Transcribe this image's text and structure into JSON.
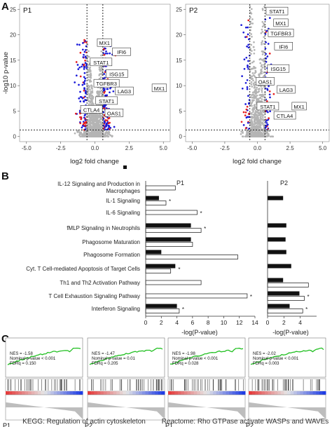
{
  "panel_labels": {
    "a": "A",
    "b": "B",
    "c": "C"
  },
  "volcano": {
    "xlabel": "log2 fold change",
    "ylabel": "-log10 p-value",
    "colors": {
      "grey": "#b4b4b4",
      "blue": "#1919d9",
      "red": "#e61e1e"
    }
  },
  "panel_b": {
    "xlabel": "-log(P-value)",
    "p1_title": "P1",
    "p2_title": "P2",
    "pathway_labels": [
      [
        "IL-12 Signaling and Production in",
        "Macrophages"
      ],
      [
        "IL-1 Signaling"
      ],
      [
        "IL-6 Signaling"
      ],
      [
        "fMLP Signaling in Neutrophils"
      ],
      [
        "Phagosome Maturation"
      ],
      [
        "Phagosome Formation"
      ],
      [
        "Cyt. T Cell-mediated Apoptosis of Target Cells"
      ],
      [
        "Th1 and Th2 Activation Pathway"
      ],
      [
        "T Cell Exhaustion Signaling Pathway"
      ],
      [
        "Interferon Signaling"
      ]
    ]
  },
  "panel_c": {
    "tiles": [
      {
        "patient": "P1",
        "nes": "NES = -1.58",
        "pval": "Nominal p-value < 0.001",
        "fdr": "FDRq = 0.150"
      },
      {
        "patient": "P2",
        "nes": "NES = -1.47",
        "pval": "Nominal p-value = 0.01",
        "fdr": "FDRq = 0.205"
      },
      {
        "patient": "P1",
        "nes": "NES = -1.98",
        "pval": "Nominal p-value < 0.001",
        "fdr": "FDRq = 0.028"
      },
      {
        "patient": "P2",
        "nes": "NES = -2.02",
        "pval": "Nominal p-value < 0.001",
        "fdr": "FDRq = 0.003"
      }
    ],
    "kegg_title": "KEGG: Regulation of actin cytoskeleton",
    "reactome_title": "Reactome: Rho GTPase activate WASPs and WAVEs"
  },
  "chart_data": [
    {
      "type": "scatter",
      "panel": "A",
      "title": "P1",
      "xlabel": "log2 fold change",
      "ylabel": "-log10 p-value",
      "xlim": [
        -5.5,
        5.5
      ],
      "ylim": [
        -1,
        26
      ],
      "x_ticks": [
        "-5.0",
        "-2.5",
        "0.0",
        "2.5",
        "5.0"
      ],
      "y_ticks": [
        "0",
        "5",
        "10",
        "15",
        "20",
        "25"
      ],
      "thresholds": {
        "log2fc": [
          -0.58,
          0.58
        ],
        "neg_log10_p": 1.3
      },
      "point_groups": [
        "not significant (grey)",
        "p < 0.05 (blue)",
        "FDR < 0.05 (red)"
      ],
      "labeled_genes": [
        {
          "gene": "MX1",
          "x": 0.7,
          "y": 18.4
        },
        {
          "gene": "IFI6",
          "x": 1.95,
          "y": 16.6
        },
        {
          "gene": "STAT1",
          "x": 0.45,
          "y": 14.6
        },
        {
          "gene": "ISG15",
          "x": 1.6,
          "y": 12.3
        },
        {
          "gene": "TGFBR3",
          "x": 0.85,
          "y": 10.4
        },
        {
          "gene": "LAG3",
          "x": 2.15,
          "y": 8.9
        },
        {
          "gene": "MX1",
          "x": 4.7,
          "y": 9.5
        },
        {
          "gene": "STAT1",
          "x": 0.85,
          "y": 7.0
        },
        {
          "gene": "CTLA4",
          "x": -0.25,
          "y": 5.3
        },
        {
          "gene": "OAS1",
          "x": 1.4,
          "y": 4.6
        }
      ]
    },
    {
      "type": "scatter",
      "panel": "A",
      "title": "P2",
      "xlabel": "log2 fold change",
      "ylabel": "",
      "xlim": [
        -5.5,
        5.5
      ],
      "ylim": [
        -1,
        26
      ],
      "x_ticks": [
        "-5.0",
        "-2.5",
        "0.0",
        "2.5",
        "5.0"
      ],
      "y_ticks": [
        "0",
        "5",
        "10",
        "15",
        "20",
        "25"
      ],
      "thresholds": {
        "log2fc": [
          -0.58,
          0.58
        ],
        "neg_log10_p": 1.3
      },
      "point_groups": [
        "not significant (grey)",
        "p < 0.05 (blue)",
        "FDR < 0.05 (red)"
      ],
      "labeled_genes": [
        {
          "gene": "STAT1",
          "x": 1.5,
          "y": 24.6
        },
        {
          "gene": "MX1",
          "x": 1.8,
          "y": 22.3
        },
        {
          "gene": "TGFBR3",
          "x": 1.8,
          "y": 20.3
        },
        {
          "gene": "IFI6",
          "x": 2.0,
          "y": 17.7
        },
        {
          "gene": "ISG15",
          "x": 1.6,
          "y": 13.3
        },
        {
          "gene": "OAS1",
          "x": 0.6,
          "y": 10.8
        },
        {
          "gene": "LAG3",
          "x": 2.2,
          "y": 9.2
        },
        {
          "gene": "STAT1",
          "x": 0.8,
          "y": 5.9
        },
        {
          "gene": "MX1",
          "x": 3.2,
          "y": 5.9
        },
        {
          "gene": "CTLA4",
          "x": 2.1,
          "y": 4.1
        }
      ]
    },
    {
      "type": "bar",
      "panel": "B",
      "title": "P1",
      "xlabel": "-log(P-value)",
      "xlim": [
        0,
        14
      ],
      "x_ticks": [
        "0",
        "2",
        "4",
        "6",
        "8",
        "10",
        "12",
        "14"
      ],
      "categories": [
        "IL-12 Signaling and Production in Macrophages",
        "IL-1 Signaling",
        "IL-6 Signaling",
        "fMLP Signaling in Neutrophils",
        "Phagosome Maturation",
        "Phagosome Formation",
        "Cyt. T Cell-mediated Apoptosis of Target Cells",
        "Th1 and Th2 Activation Pathway",
        "T Cell Exhaustion Signaling Pathway",
        "Interferon Signaling"
      ],
      "series": [
        {
          "name": "",
          "color": "black",
          "values": [
            null,
            1.7,
            null,
            5.8,
            5.8,
            2.0,
            3.8,
            null,
            null,
            4.0
          ]
        },
        {
          "name": "",
          "color": "white",
          "values": [
            3.8,
            2.6,
            6.6,
            7.1,
            6.0,
            11.8,
            3.2,
            7.1,
            13.0,
            4.3
          ]
        }
      ],
      "significance_marks": [
        false,
        true,
        true,
        true,
        false,
        false,
        true,
        false,
        true,
        true
      ]
    },
    {
      "type": "bar",
      "panel": "B",
      "title": "P2",
      "xlabel": "-log(P-value)",
      "xlim": [
        0,
        6
      ],
      "x_ticks": [
        "0",
        "2",
        "4"
      ],
      "categories": [
        "IL-12 Signaling and Production in Macrophages",
        "IL-1 Signaling",
        "IL-6 Signaling",
        "fMLP Signaling in Neutrophils",
        "Phagosome Maturation",
        "Phagosome Formation",
        "Cyt. T Cell-mediated Apoptosis of Target Cells",
        "Th1 and Th2 Activation Pathway",
        "T Cell Exhaustion Signaling Pathway",
        "Interferon Signaling"
      ],
      "series": [
        {
          "name": "",
          "color": "black",
          "values": [
            null,
            1.9,
            null,
            2.3,
            2.2,
            2.3,
            2.9,
            1.9,
            3.9,
            2.7
          ]
        },
        {
          "name": "",
          "color": "white",
          "values": [
            null,
            null,
            null,
            null,
            null,
            null,
            null,
            5.0,
            4.5,
            4.3
          ]
        }
      ],
      "significance_marks": [
        false,
        false,
        false,
        false,
        false,
        false,
        false,
        false,
        true,
        true
      ]
    }
  ]
}
